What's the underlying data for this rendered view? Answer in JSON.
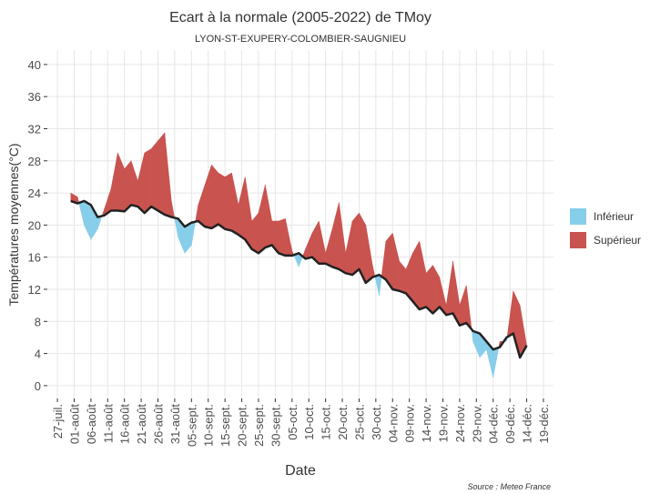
{
  "chart_data": {
    "type": "ribbon",
    "title": "Ecart à la normale (2005-2022) de TMoy",
    "subtitle": "LYON-ST-EXUPERY-COLOMBIER-SAUGNIEU",
    "x_label": "Date",
    "y_label": "Températures moyennes(°C)",
    "caption": "Source : Meteo France",
    "x": [
      4,
      6,
      8,
      10,
      12,
      14,
      16,
      18,
      20,
      22,
      24,
      26,
      28,
      30,
      32,
      34,
      36,
      38,
      40,
      42,
      44,
      46,
      48,
      50,
      52,
      54,
      56,
      58,
      60,
      62,
      64,
      66,
      68,
      70,
      72,
      74,
      76,
      78,
      80,
      82,
      84,
      86,
      88,
      90,
      92,
      94,
      96,
      98,
      100,
      102,
      104,
      106,
      108,
      110,
      112,
      114,
      116,
      118,
      120,
      122,
      124,
      126,
      128,
      130,
      132,
      134,
      136,
      138,
      140
    ],
    "normal": [
      23,
      22.7,
      23,
      22.5,
      21,
      21.2,
      21.8,
      21.8,
      21.7,
      22.5,
      22.3,
      21.5,
      22.3,
      21.8,
      21.3,
      21,
      20.8,
      19.8,
      20.3,
      20.5,
      19.8,
      19.6,
      20.1,
      19.5,
      19.3,
      18.8,
      18.2,
      17,
      16.5,
      17.2,
      17.5,
      16.5,
      16.2,
      16.2,
      16.5,
      15.8,
      16,
      15.2,
      15.2,
      14.8,
      14.5,
      14,
      13.8,
      14.5,
      12.8,
      13.5,
      13.8,
      13.2,
      12,
      11.8,
      11.5,
      10.5,
      9.5,
      9.8,
      9,
      9.8,
      8.8,
      9,
      7.5,
      7.8,
      6.8,
      6.5,
      5.5,
      4.5,
      4.8,
      6,
      6.5,
      3.5,
      5
    ],
    "observed": [
      24,
      23.5,
      20,
      18.2,
      19.5,
      22,
      24.5,
      29,
      27,
      28,
      25.5,
      29,
      29.5,
      30.5,
      31.5,
      23,
      18.5,
      16.5,
      17.5,
      22.5,
      25,
      27.5,
      26.5,
      26,
      26.5,
      22.5,
      26,
      20.5,
      21.5,
      25,
      20.5,
      20.5,
      20.8,
      16.8,
      14.8,
      17,
      19,
      20.5,
      16.5,
      19.5,
      22.8,
      16.5,
      20.5,
      21.5,
      20,
      15,
      11.2,
      18,
      19,
      15.5,
      14.5,
      16.5,
      18,
      14,
      15,
      13.5,
      10,
      15.5,
      10,
      12.5,
      5.5,
      3.5,
      4.5,
      1,
      5.5,
      5.5,
      11.8,
      10,
      5
    ],
    "line_color": "#222222",
    "fills": [
      {
        "name": "Inférieur",
        "color": "#87ceeb"
      },
      {
        "name": "Supérieur",
        "color": "#c9534f"
      }
    ],
    "xlim": [
      -3,
      148
    ],
    "ylim": [
      -1.6,
      41.8
    ],
    "yticks": [
      0,
      4,
      8,
      12,
      16,
      20,
      24,
      28,
      32,
      36,
      40
    ],
    "xticks": [
      {
        "value": 0,
        "label": "27-juil."
      },
      {
        "value": 5,
        "label": "01-août"
      },
      {
        "value": 10,
        "label": "06-août"
      },
      {
        "value": 15,
        "label": "11-août"
      },
      {
        "value": 20,
        "label": "16-août"
      },
      {
        "value": 25,
        "label": "21-août"
      },
      {
        "value": 30,
        "label": "26-août"
      },
      {
        "value": 35,
        "label": "31-août"
      },
      {
        "value": 40,
        "label": "05-sept."
      },
      {
        "value": 45,
        "label": "10-sept."
      },
      {
        "value": 50,
        "label": "15-sept."
      },
      {
        "value": 55,
        "label": "20-sept."
      },
      {
        "value": 60,
        "label": "25-sept."
      },
      {
        "value": 65,
        "label": "30-sept."
      },
      {
        "value": 70,
        "label": "05-oct."
      },
      {
        "value": 75,
        "label": "10-oct."
      },
      {
        "value": 80,
        "label": "15-oct."
      },
      {
        "value": 85,
        "label": "20-oct."
      },
      {
        "value": 90,
        "label": "25-oct."
      },
      {
        "value": 95,
        "label": "30-oct."
      },
      {
        "value": 100,
        "label": "04-nov."
      },
      {
        "value": 105,
        "label": "09-nov."
      },
      {
        "value": 110,
        "label": "14-nov."
      },
      {
        "value": 115,
        "label": "19-nov."
      },
      {
        "value": 120,
        "label": "24-nov."
      },
      {
        "value": 125,
        "label": "29-nov."
      },
      {
        "value": 130,
        "label": "04-déc."
      },
      {
        "value": 135,
        "label": "09-déc."
      },
      {
        "value": 140,
        "label": "14-déc."
      },
      {
        "value": 145,
        "label": "19-déc."
      }
    ],
    "grid": true
  }
}
